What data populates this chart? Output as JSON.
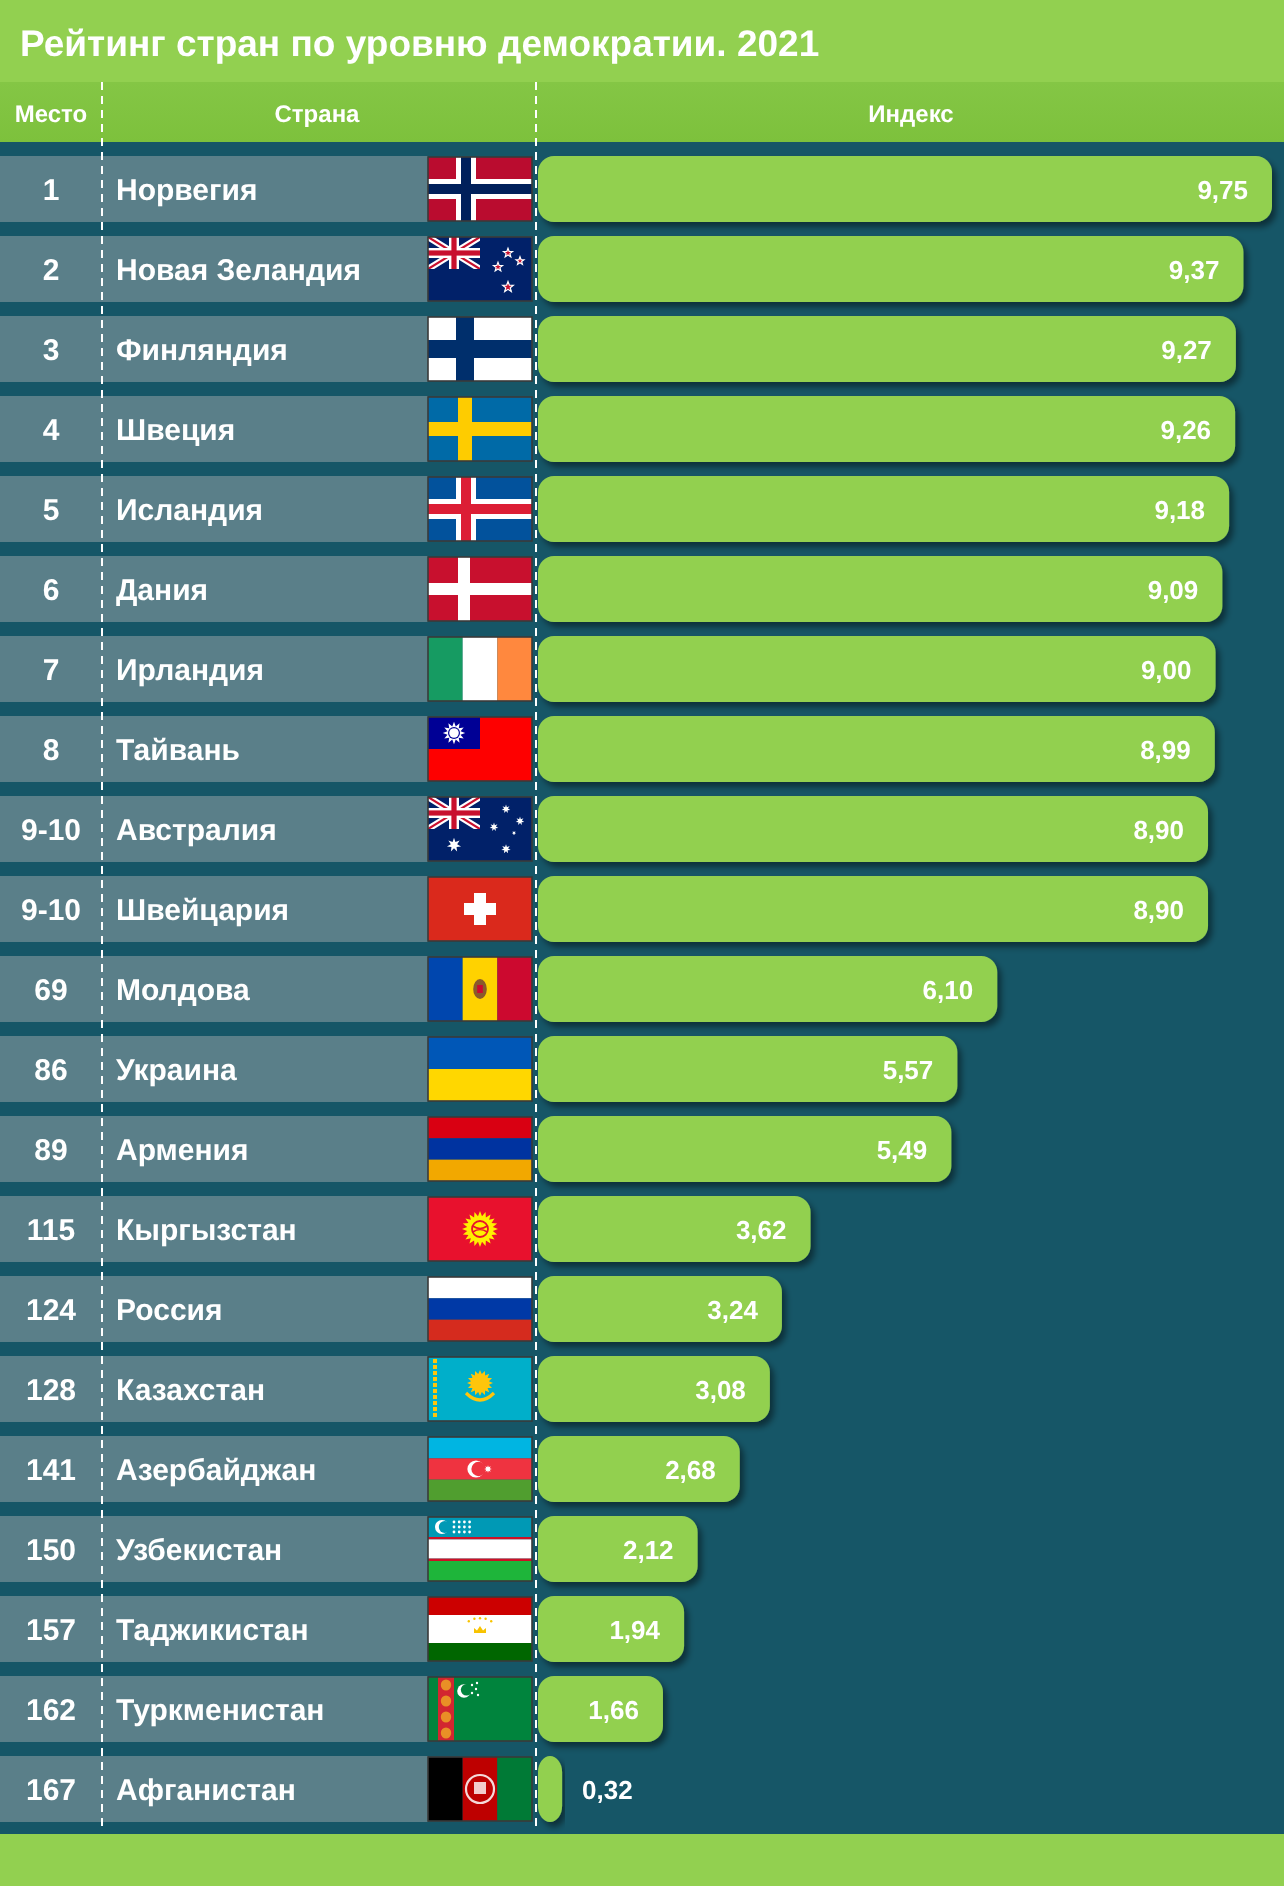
{
  "chart_data": {
    "type": "bar",
    "orientation": "horizontal",
    "title": "Рейтинг стран по уровню демократии. 2021",
    "ylabel": "Страна",
    "xlabel": "Индекс",
    "categories": [
      "Норвегия",
      "Новая Зеландия",
      "Финляндия",
      "Швеция",
      "Исландия",
      "Дания",
      "Ирландия",
      "Тайвань",
      "Австралия",
      "Швейцария",
      "Молдова",
      "Украина",
      "Армения",
      "Кыргызстан",
      "Россия",
      "Казахстан",
      "Азербайджан",
      "Узбекистан",
      "Таджикистан",
      "Туркменистан",
      "Афганистан"
    ],
    "values": [
      9.75,
      9.37,
      9.27,
      9.26,
      9.18,
      9.09,
      9.0,
      8.99,
      8.9,
      8.9,
      6.1,
      5.57,
      5.49,
      3.62,
      3.24,
      3.08,
      2.68,
      2.12,
      1.94,
      1.66,
      0.32
    ],
    "color": "#92d050",
    "value_labels": [
      "9,75",
      "9,37",
      "9,27",
      "9,26",
      "9,18",
      "9,09",
      "9,00",
      "8,99",
      "8,90",
      "8,90",
      "6,10",
      "5,57",
      "5,49",
      "3,62",
      "3,24",
      "3,08",
      "2,68",
      "2,12",
      "1,94",
      "1,66",
      "0,32"
    ],
    "annotations": [
      "Место",
      "1",
      "2",
      "3",
      "4",
      "5",
      "6",
      "7",
      "8",
      "9-10",
      "9-10",
      "69",
      "86",
      "89",
      "115",
      "124",
      "128",
      "141",
      "150",
      "157",
      "162",
      "167"
    ]
  }
}
